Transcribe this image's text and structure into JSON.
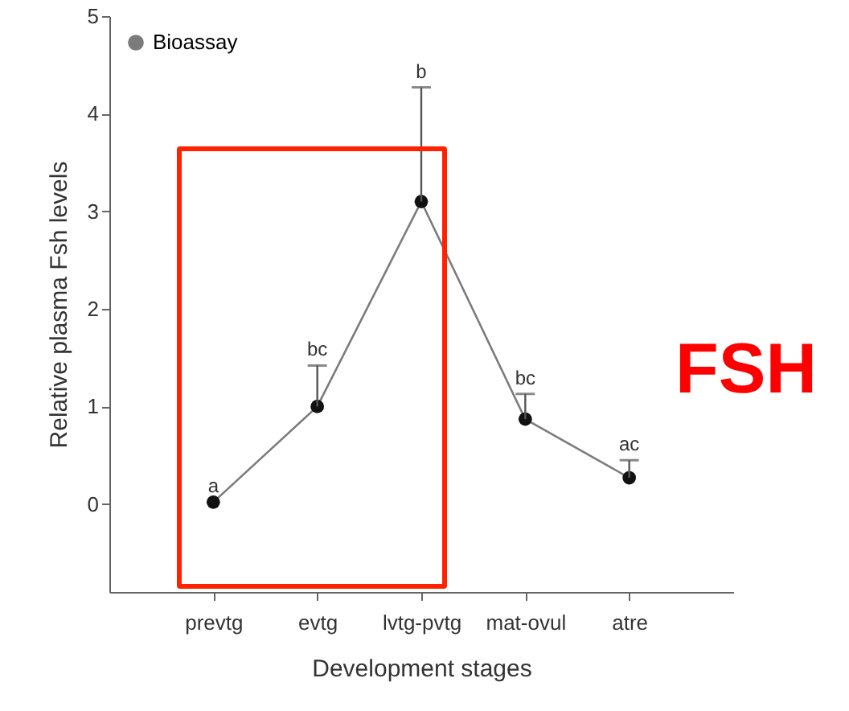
{
  "chart_data": {
    "type": "line",
    "xlabel": "Development stages",
    "ylabel": "Relative plasma Fsh levels",
    "categories": [
      "prevtg",
      "evtg",
      "lvtg-pvtg",
      "mat-ovul",
      "atre"
    ],
    "series": [
      {
        "name": "Bioassay",
        "color": "#111111",
        "values": [
          0.02,
          1.0,
          3.1,
          0.87,
          0.27
        ],
        "errors": [
          null,
          [
            1.0,
            1.42
          ],
          [
            3.1,
            4.27
          ],
          [
            0.87,
            1.13
          ],
          [
            0.27,
            0.45
          ]
        ]
      }
    ],
    "ylim": [
      -0.9,
      5
    ],
    "yticks": [
      0,
      1,
      2,
      3,
      4,
      5
    ],
    "grid": false,
    "legend": "top left",
    "marker": "circle",
    "line_style": "solid",
    "annotations": [
      {
        "text": "a",
        "x": "prevtg",
        "y": 0.02
      },
      {
        "text": "bc",
        "x": "evtg",
        "y": 1.42
      },
      {
        "text": "b",
        "x": "lvtg-pvtg",
        "y": 4.27
      },
      {
        "text": "bc",
        "x": "mat-ovul",
        "y": 1.13
      },
      {
        "text": "ac",
        "x": "atre",
        "y": 0.45
      },
      "FSH"
    ]
  }
}
